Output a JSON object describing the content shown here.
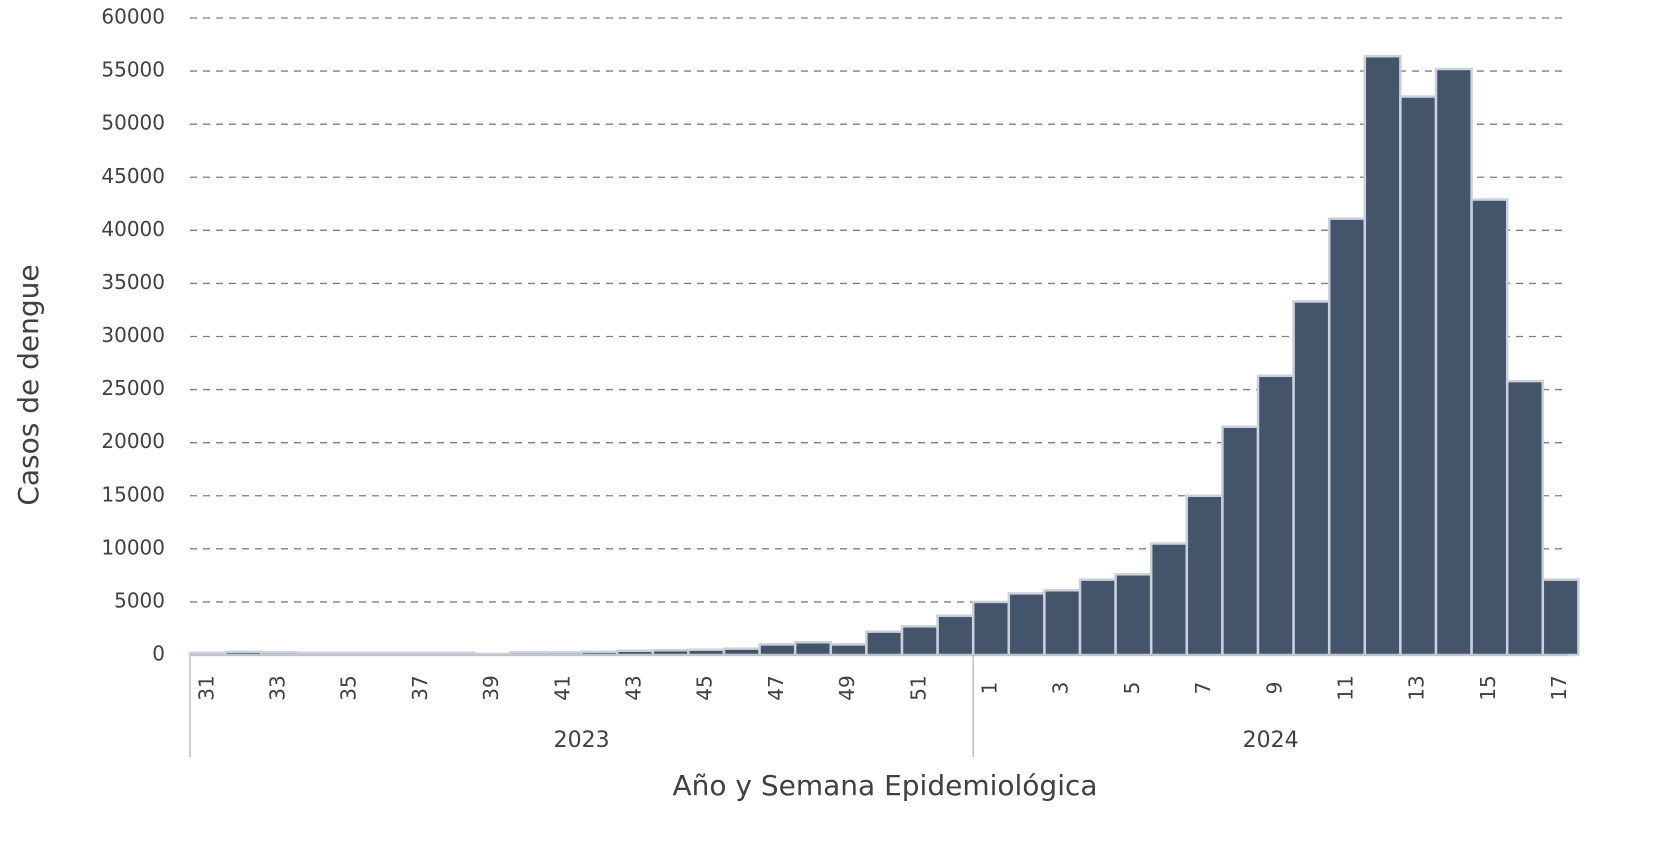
{
  "chart_data": {
    "type": "bar",
    "x_label": "Año y Semana Epidemiológica",
    "y_label": "Casos de dengue",
    "color": "#44546a",
    "grid": true,
    "ylim": [
      0,
      60000
    ],
    "yticks": [
      0,
      5000,
      10000,
      15000,
      20000,
      25000,
      30000,
      35000,
      40000,
      45000,
      50000,
      55000,
      60000
    ],
    "groups": [
      {
        "label": "2023",
        "categories": [
          "31",
          null,
          "33",
          null,
          "35",
          null,
          "37",
          null,
          "39",
          null,
          "41",
          null,
          "43",
          null,
          "45",
          null,
          "47",
          null,
          "49",
          null,
          "51",
          null
        ],
        "values": [
          200,
          300,
          250,
          200,
          200,
          200,
          200,
          200,
          100,
          250,
          250,
          300,
          400,
          450,
          500,
          600,
          1000,
          1200,
          1000,
          2200,
          2700,
          3700
        ]
      },
      {
        "label": "2024",
        "categories": [
          "1",
          null,
          "3",
          null,
          "5",
          null,
          "7",
          null,
          "9",
          null,
          "11",
          null,
          "13",
          null,
          "15",
          null,
          "17"
        ],
        "values": [
          5000,
          5800,
          6100,
          7100,
          7600,
          10500,
          15000,
          21500,
          26300,
          33300,
          41100,
          56400,
          52600,
          55200,
          42900,
          25800,
          7100
        ]
      }
    ]
  }
}
